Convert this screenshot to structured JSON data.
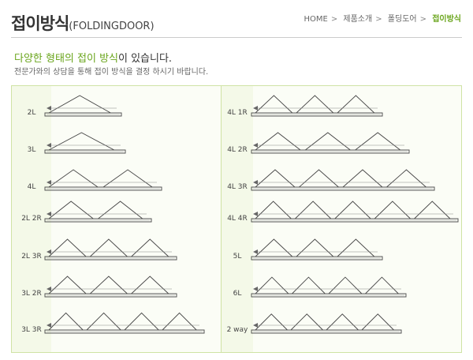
{
  "header": {
    "title_ko": "접이방식",
    "title_en": "(FOLDINGDOOR)",
    "breadcrumb": [
      "HOME",
      "제품소개",
      "폴딩도어",
      "접이방식"
    ]
  },
  "intro": {
    "headline_highlight": "다양한 형태의 접이 방식",
    "headline_rest": "이 있습니다.",
    "description": "전문가와의 상담을 통해 접이 방식을 결정 하시기 바랍니다."
  },
  "types": {
    "left": [
      "2L",
      "3L",
      "4L",
      "2L 2R",
      "2L 3R",
      "3L 2R",
      "3L 3R"
    ],
    "right": [
      "4L 1R",
      "4L 2R",
      "4L 3R",
      "4L 4R",
      "5L",
      "6L",
      "2 way"
    ]
  },
  "colors": {
    "accent": "#6aa51c",
    "panel_border": "#cfe3a5"
  }
}
